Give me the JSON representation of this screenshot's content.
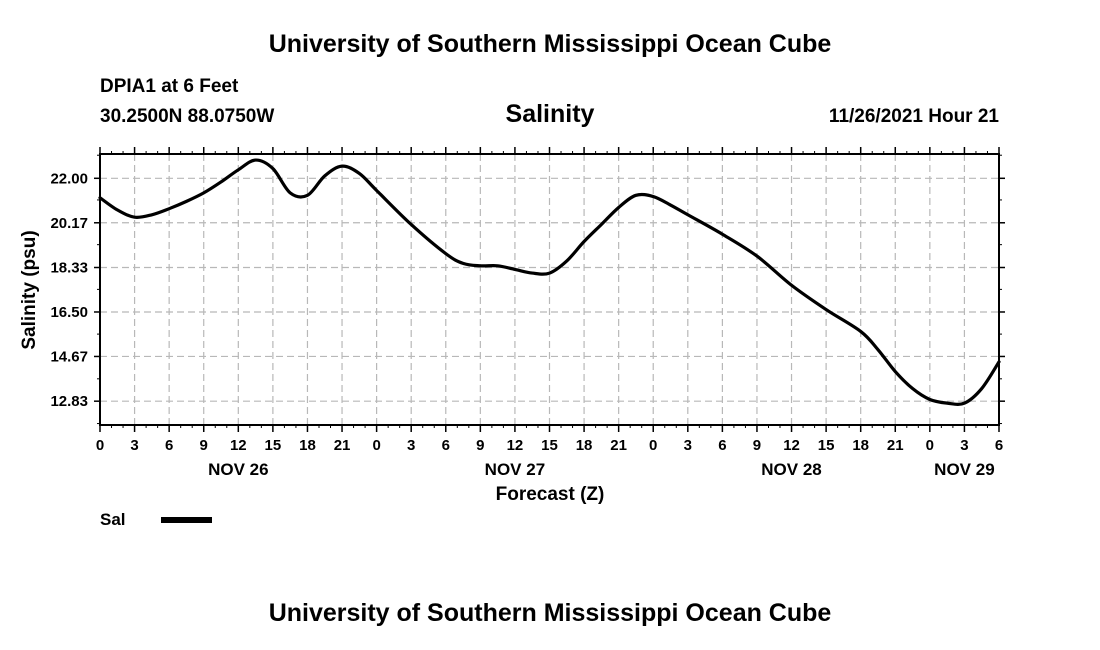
{
  "header": {
    "title": "University of Southern Mississippi Ocean Cube",
    "station": "DPIA1 at 6 Feet",
    "coordinates": "30.2500N  88.0750W",
    "datetime": "11/26/2021 Hour 21"
  },
  "footer": {
    "title": "University of Southern Mississippi Ocean Cube"
  },
  "legend": {
    "label": "Sal"
  },
  "chart_data": {
    "type": "line",
    "title": "Salinity",
    "xlabel": "Forecast (Z)",
    "ylabel": "Salinity (psu)",
    "grid": true,
    "xlim_hours": [
      0,
      78
    ],
    "ylim": [
      11.85,
      23.0
    ],
    "y_ticks": [
      12.83,
      14.67,
      16.5,
      18.33,
      20.17,
      22.0
    ],
    "y_tick_labels": [
      "12.83",
      "14.67",
      "16.50",
      "18.33",
      "20.17",
      "22.00"
    ],
    "x_tick_hours": [
      0,
      3,
      6,
      9,
      12,
      15,
      18,
      21,
      24,
      27,
      30,
      33,
      36,
      39,
      42,
      45,
      48,
      51,
      54,
      57,
      60,
      63,
      66,
      69,
      72,
      75,
      78
    ],
    "x_tick_labels": [
      "0",
      "3",
      "6",
      "9",
      "12",
      "15",
      "18",
      "21",
      "0",
      "3",
      "6",
      "9",
      "12",
      "15",
      "18",
      "21",
      "0",
      "3",
      "6",
      "9",
      "12",
      "15",
      "18",
      "21",
      "0",
      "3",
      "6"
    ],
    "date_labels": [
      {
        "label": "NOV 26",
        "hour": 12
      },
      {
        "label": "NOV 27",
        "hour": 36
      },
      {
        "label": "NOV 28",
        "hour": 60
      },
      {
        "label": "NOV 29",
        "hour": 75
      }
    ],
    "series": [
      {
        "name": "Sal",
        "color": "#000000",
        "x": [
          0,
          1.5,
          3,
          4.5,
          6,
          7.5,
          9,
          10.5,
          12,
          13.5,
          15,
          16.5,
          18,
          19.5,
          21,
          22.5,
          24,
          27,
          30,
          31.5,
          33,
          34.5,
          36,
          37.5,
          39,
          40.5,
          42,
          43.5,
          45,
          46.5,
          48,
          49.5,
          51,
          54,
          57,
          60,
          63,
          66,
          67.5,
          69,
          70.5,
          72,
          73.5,
          75,
          76.5,
          78
        ],
        "y": [
          21.2,
          20.7,
          20.4,
          20.5,
          20.75,
          21.05,
          21.4,
          21.85,
          22.35,
          22.75,
          22.4,
          21.4,
          21.3,
          22.1,
          22.5,
          22.2,
          21.5,
          20.1,
          18.9,
          18.5,
          18.4,
          18.4,
          18.25,
          18.1,
          18.1,
          18.6,
          19.4,
          20.1,
          20.8,
          21.3,
          21.25,
          20.9,
          20.5,
          19.7,
          18.8,
          17.6,
          16.6,
          15.7,
          14.95,
          14.05,
          13.35,
          12.9,
          12.75,
          12.75,
          13.35,
          14.45
        ]
      }
    ]
  }
}
